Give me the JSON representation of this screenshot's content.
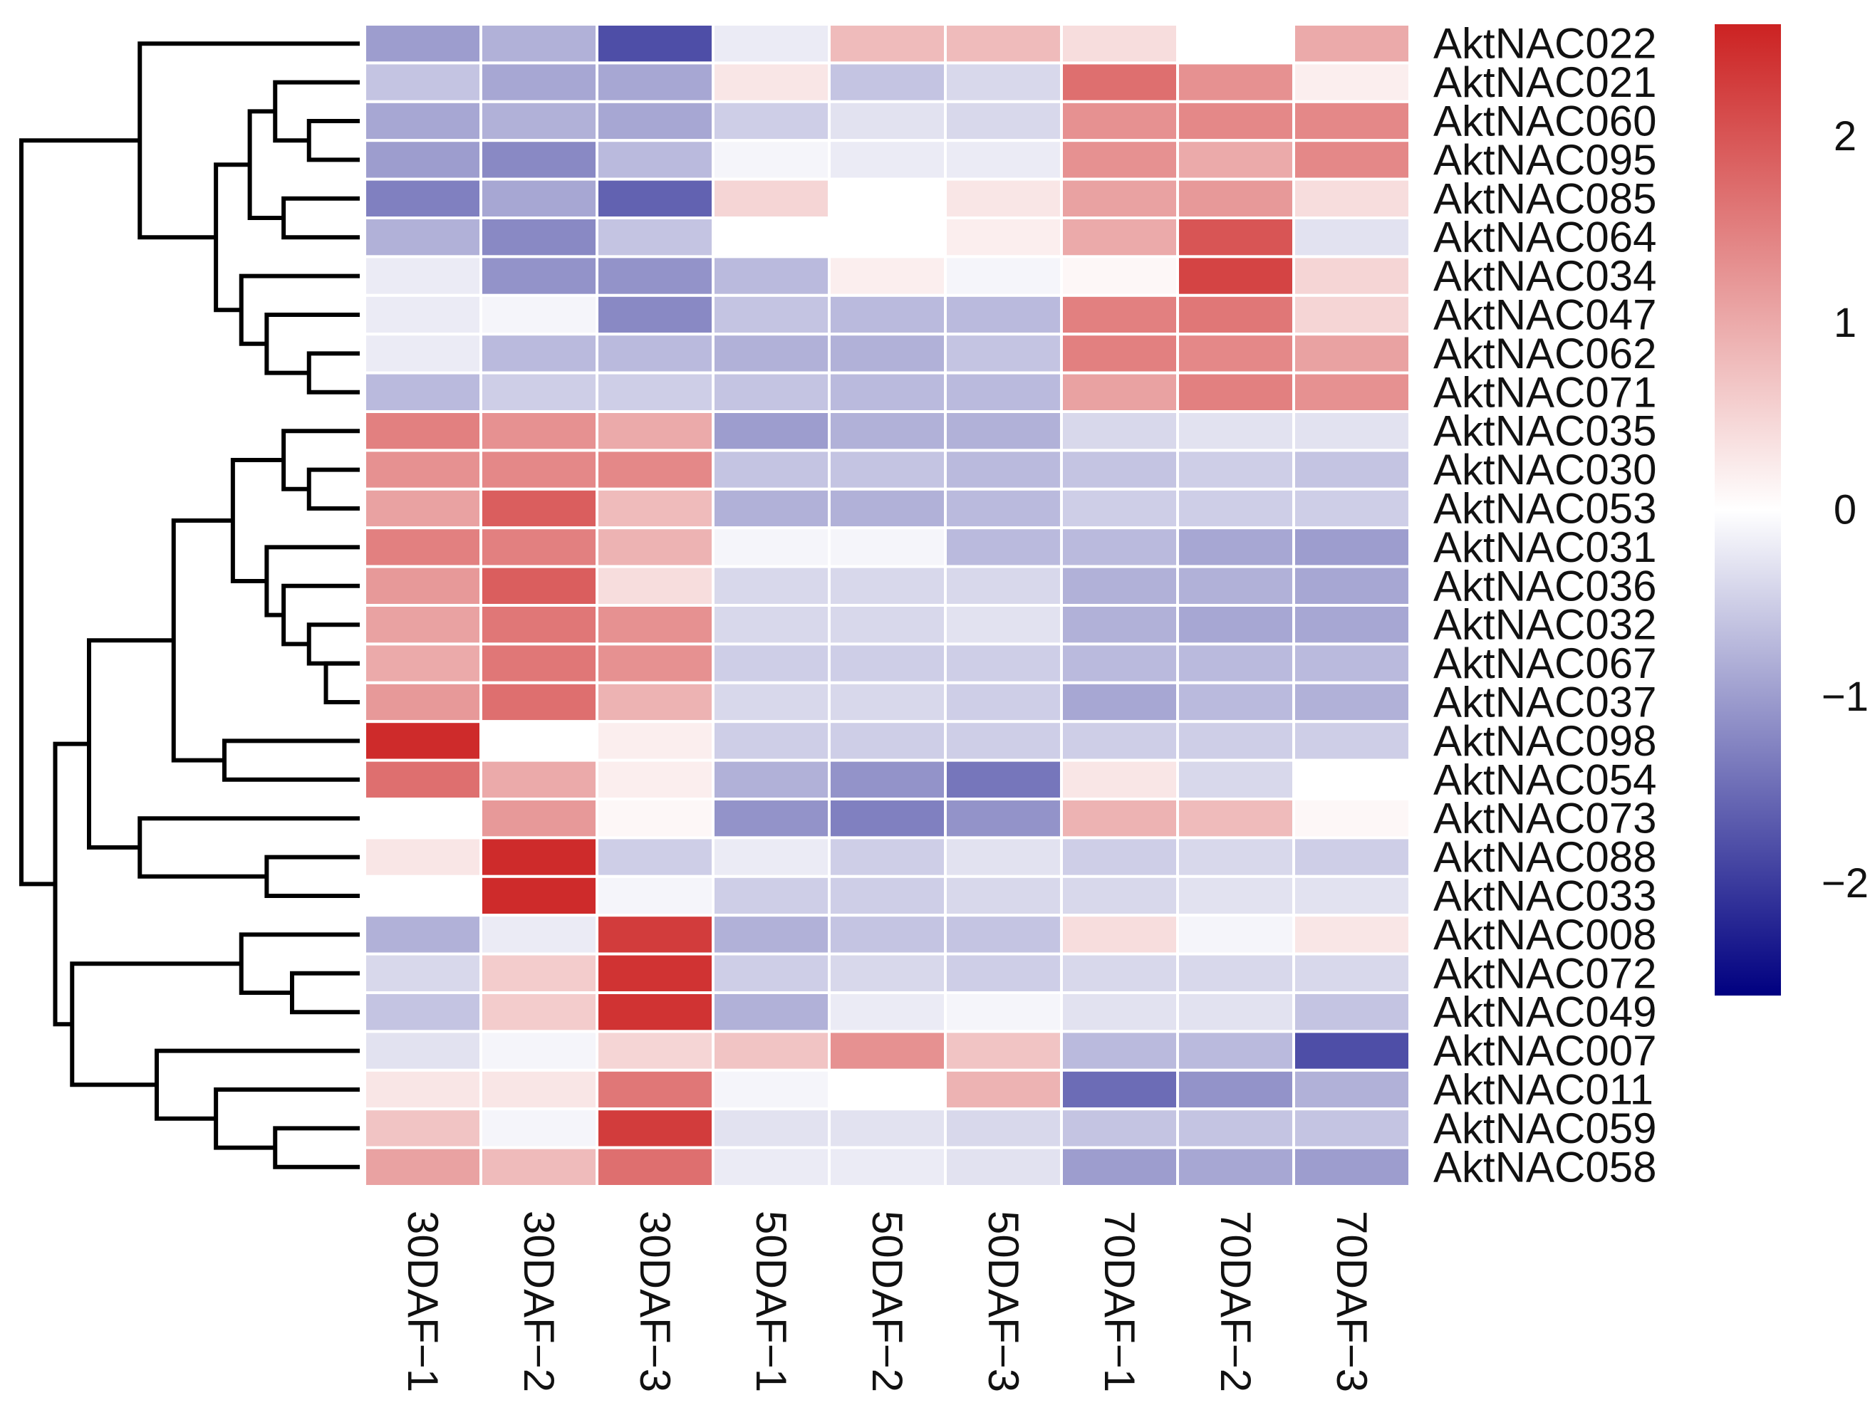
{
  "chart_data": {
    "type": "heatmap",
    "title": "",
    "xlabel": "",
    "ylabel": "",
    "columns": [
      "30DAF−1",
      "30DAF−2",
      "30DAF−3",
      "50DAF−1",
      "50DAF−2",
      "50DAF−3",
      "70DAF−1",
      "70DAF−2",
      "70DAF−3"
    ],
    "rows": [
      "AktNAC022",
      "AktNAC021",
      "AktNAC060",
      "AktNAC095",
      "AktNAC085",
      "AktNAC064",
      "AktNAC034",
      "AktNAC047",
      "AktNAC062",
      "AktNAC071",
      "AktNAC035",
      "AktNAC030",
      "AktNAC053",
      "AktNAC031",
      "AktNAC036",
      "AktNAC032",
      "AktNAC067",
      "AktNAC037",
      "AktNAC098",
      "AktNAC054",
      "AktNAC073",
      "AktNAC088",
      "AktNAC033",
      "AktNAC008",
      "AktNAC072",
      "AktNAC049",
      "AktNAC007",
      "AktNAC011",
      "AktNAC059",
      "AktNAC058"
    ],
    "values": [
      [
        -1.0,
        -0.8,
        -1.8,
        -0.2,
        0.8,
        0.8,
        0.4,
        0.0,
        1.0
      ],
      [
        -0.6,
        -0.9,
        -0.9,
        0.3,
        -0.6,
        -0.4,
        1.7,
        1.3,
        0.2
      ],
      [
        -0.9,
        -0.8,
        -0.9,
        -0.5,
        -0.3,
        -0.4,
        1.3,
        1.4,
        1.4
      ],
      [
        -1.0,
        -1.2,
        -0.7,
        -0.1,
        -0.2,
        -0.2,
        1.3,
        1.0,
        1.4
      ],
      [
        -1.3,
        -0.9,
        -1.6,
        0.5,
        0.0,
        0.3,
        1.1,
        1.2,
        0.4
      ],
      [
        -0.8,
        -1.2,
        -0.6,
        0.0,
        0.0,
        0.2,
        1.0,
        2.0,
        -0.3
      ],
      [
        -0.2,
        -1.1,
        -1.1,
        -0.7,
        0.2,
        -0.1,
        0.1,
        2.2,
        0.5
      ],
      [
        -0.2,
        -0.1,
        -1.2,
        -0.6,
        -0.7,
        -0.7,
        1.5,
        1.6,
        0.5
      ],
      [
        -0.2,
        -0.7,
        -0.7,
        -0.8,
        -0.8,
        -0.6,
        1.5,
        1.4,
        1.1
      ],
      [
        -0.7,
        -0.5,
        -0.5,
        -0.6,
        -0.7,
        -0.7,
        1.1,
        1.5,
        1.3
      ],
      [
        1.5,
        1.3,
        1.0,
        -1.0,
        -0.8,
        -0.8,
        -0.4,
        -0.3,
        -0.3
      ],
      [
        1.3,
        1.4,
        1.4,
        -0.6,
        -0.6,
        -0.7,
        -0.6,
        -0.5,
        -0.6
      ],
      [
        1.1,
        1.9,
        0.8,
        -0.8,
        -0.8,
        -0.7,
        -0.5,
        -0.5,
        -0.5
      ],
      [
        1.5,
        1.5,
        0.9,
        -0.1,
        -0.1,
        -0.7,
        -0.7,
        -0.9,
        -1.0
      ],
      [
        1.2,
        1.9,
        0.4,
        -0.4,
        -0.4,
        -0.4,
        -0.8,
        -0.8,
        -0.9
      ],
      [
        1.1,
        1.6,
        1.3,
        -0.4,
        -0.4,
        -0.3,
        -0.8,
        -0.9,
        -0.9
      ],
      [
        1.0,
        1.6,
        1.3,
        -0.5,
        -0.5,
        -0.5,
        -0.7,
        -0.7,
        -0.7
      ],
      [
        1.2,
        1.7,
        0.9,
        -0.4,
        -0.4,
        -0.5,
        -0.9,
        -0.7,
        -0.8
      ],
      [
        2.5,
        0.0,
        0.2,
        -0.5,
        -0.5,
        -0.5,
        -0.5,
        -0.5,
        -0.5
      ],
      [
        1.7,
        1.0,
        0.2,
        -0.8,
        -1.1,
        -1.4,
        0.3,
        -0.4,
        0.0
      ],
      [
        0.0,
        1.2,
        0.1,
        -1.1,
        -1.3,
        -1.1,
        0.9,
        0.8,
        0.1
      ],
      [
        0.3,
        2.5,
        -0.5,
        -0.2,
        -0.5,
        -0.3,
        -0.5,
        -0.4,
        -0.5
      ],
      [
        0.0,
        2.5,
        -0.1,
        -0.5,
        -0.5,
        -0.4,
        -0.4,
        -0.3,
        -0.3
      ],
      [
        -0.8,
        -0.2,
        2.3,
        -0.8,
        -0.6,
        -0.6,
        0.4,
        -0.1,
        0.3
      ],
      [
        -0.4,
        0.6,
        2.4,
        -0.5,
        -0.4,
        -0.5,
        -0.4,
        -0.4,
        -0.4
      ],
      [
        -0.6,
        0.6,
        2.4,
        -0.8,
        -0.2,
        -0.1,
        -0.3,
        -0.3,
        -0.6
      ],
      [
        -0.3,
        -0.1,
        0.5,
        0.7,
        1.3,
        0.7,
        -0.7,
        -0.7,
        -1.8
      ],
      [
        0.3,
        0.3,
        1.6,
        -0.1,
        0.0,
        0.9,
        -1.5,
        -1.1,
        -0.8
      ],
      [
        0.7,
        -0.1,
        2.3,
        -0.3,
        -0.3,
        -0.4,
        -0.6,
        -0.6,
        -0.6
      ],
      [
        1.1,
        0.8,
        1.7,
        -0.2,
        -0.2,
        -0.3,
        -1.0,
        -0.9,
        -1.0
      ]
    ],
    "color_scale": {
      "min": -2.6,
      "max": 2.6,
      "low_color": "#000080",
      "mid_color": "#ffffff",
      "high_color": "#cc2222",
      "ticks": [
        2,
        1,
        0,
        -1,
        -2
      ],
      "tick_labels": [
        "2",
        "1",
        "0",
        "−1",
        "−2"
      ]
    },
    "dendrogram": {
      "orientation": "left",
      "merges": [
        [
          2,
          3,
          0.3
        ],
        [
          8,
          9,
          0.3
        ],
        [
          17,
          16,
          0.2
        ],
        [
          16,
          15,
          0.3
        ],
        [
          7,
          "n1",
          0.55
        ],
        [
          6,
          "n4",
          0.7
        ],
        [
          1,
          "n0",
          0.5
        ],
        [
          4,
          5,
          0.45
        ],
        [
          "n6",
          "n7",
          0.65
        ],
        [
          "n8",
          "n5",
          0.85
        ],
        [
          0,
          "n9",
          1.3
        ],
        [
          11,
          12,
          0.3
        ],
        [
          10,
          "n11",
          0.45
        ],
        [
          14,
          "n3",
          0.45
        ],
        [
          13,
          "n13",
          0.55
        ],
        [
          "n12",
          "n14",
          0.75
        ],
        [
          18,
          19,
          0.8
        ],
        [
          "n15",
          "n16",
          1.1
        ],
        [
          21,
          22,
          0.55
        ],
        [
          20,
          "n18",
          1.3
        ],
        [
          "n17",
          "n19",
          1.6
        ],
        [
          24,
          25,
          0.4
        ],
        [
          23,
          "n21",
          0.7
        ],
        [
          28,
          29,
          0.5
        ],
        [
          27,
          "n23",
          0.85
        ],
        [
          26,
          "n24",
          1.2
        ],
        [
          "n22",
          "n25",
          1.7
        ],
        [
          "n20",
          "n26",
          1.8
        ],
        [
          "n27",
          "n10",
          2.0
        ]
      ]
    }
  }
}
